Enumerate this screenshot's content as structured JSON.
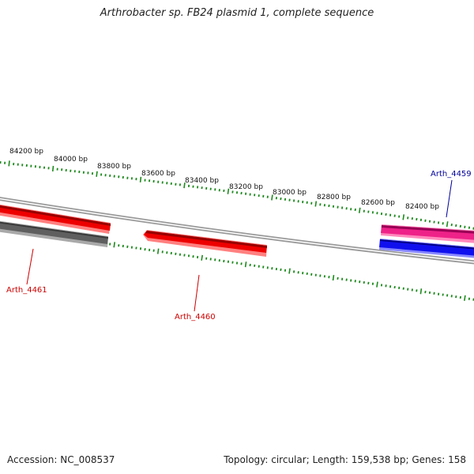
{
  "title": "Arthrobacter sp. FB24 plasmid 1, complete sequence",
  "accession": "Accession: NC_008537",
  "summary": "Topology: circular; Length: 159,538 bp; Genes: 158",
  "colors": {
    "backbone": "#8c8c8c",
    "tick": "#1e8a1e",
    "forward_gene": "#ee0000",
    "reverse_gene": "#666666",
    "highlight_fwd": "#ee2288",
    "highlight_rev": "#1010ee",
    "label_red": "#cc0000",
    "label_blue": "#000099"
  },
  "map": {
    "ticks": [
      {
        "label": "84200 bp"
      },
      {
        "label": "84000 bp"
      },
      {
        "label": "83800 bp"
      },
      {
        "label": "83600 bp"
      },
      {
        "label": "83400 bp"
      },
      {
        "label": "83200 bp"
      },
      {
        "label": "83000 bp"
      },
      {
        "label": "82800 bp"
      },
      {
        "label": "82600 bp"
      },
      {
        "label": "82400 bp"
      }
    ],
    "genes": [
      {
        "name": "Arth_4461"
      },
      {
        "name": "Arth_4460"
      },
      {
        "name": "Arth_4459"
      }
    ]
  }
}
